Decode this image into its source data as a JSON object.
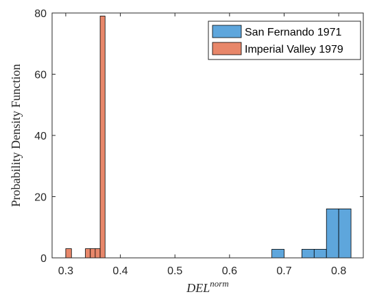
{
  "chart_data": {
    "type": "bar",
    "xlabel_base": "DEL",
    "xlabel_sup": "norm",
    "ylabel": "Probability Density Function",
    "xlim": [
      0.275,
      0.845
    ],
    "ylim": [
      0,
      80
    ],
    "xticks": [
      0.3,
      0.4,
      0.5,
      0.6,
      0.7,
      0.8
    ],
    "yticks": [
      0,
      20,
      40,
      60,
      80
    ],
    "legend_position": "top-right",
    "grid": false,
    "series": [
      {
        "name": "San Fernando 1971",
        "color": "#5ea6dc",
        "bins": [
          {
            "x0": 0.6775,
            "x1": 0.7,
            "value": 2.8
          },
          {
            "x0": 0.7325,
            "x1": 0.755,
            "value": 2.8
          },
          {
            "x0": 0.755,
            "x1": 0.7775,
            "value": 2.8
          },
          {
            "x0": 0.7775,
            "x1": 0.8,
            "value": 16
          },
          {
            "x0": 0.8,
            "x1": 0.8225,
            "value": 16
          }
        ]
      },
      {
        "name": "Imperial Valley 1979",
        "color": "#e8876a",
        "bins": [
          {
            "x0": 0.3,
            "x1": 0.3105,
            "value": 3
          },
          {
            "x0": 0.336,
            "x1": 0.345,
            "value": 3
          },
          {
            "x0": 0.345,
            "x1": 0.354,
            "value": 3
          },
          {
            "x0": 0.354,
            "x1": 0.363,
            "value": 3
          },
          {
            "x0": 0.363,
            "x1": 0.372,
            "value": 79
          }
        ]
      }
    ]
  }
}
